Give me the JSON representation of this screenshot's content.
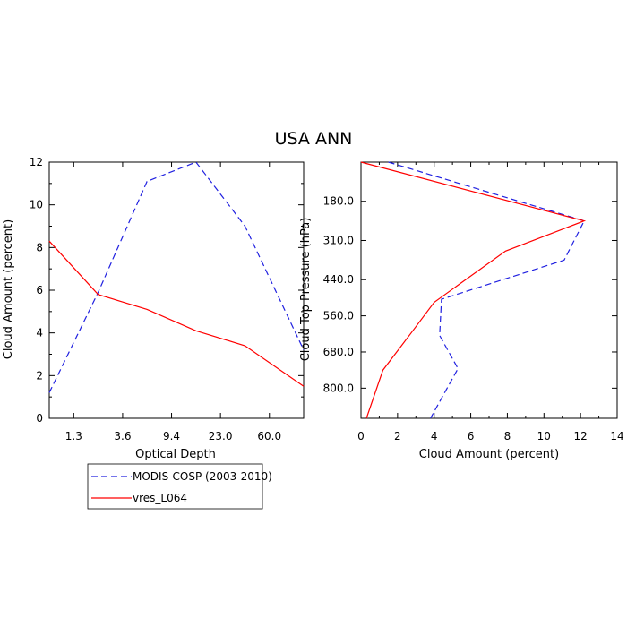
{
  "title": "USA ANN",
  "colors": {
    "modis": "#2020e0",
    "model": "#ff0000",
    "frame": "#000000"
  },
  "chart_data": [
    {
      "type": "line",
      "xlabel": "Optical Depth",
      "ylabel": "Cloud Amount (percent)",
      "x_tick_labels": [
        "1.3",
        "3.6",
        "9.4",
        "23.0",
        "60.0"
      ],
      "x_positions": [
        0.5,
        1.5,
        2.5,
        3.5,
        4.5
      ],
      "xlim": [
        0,
        5.2
      ],
      "ylim": [
        0,
        12
      ],
      "y_ticks": [
        0,
        2,
        4,
        6,
        8,
        10,
        12
      ],
      "series": [
        {
          "name": "MODIS-COSP (2003-2010)",
          "color_key": "modis",
          "style": "dashed",
          "x": [
            0,
            1,
            2,
            3,
            4,
            5.2
          ],
          "y": [
            1.2,
            5.9,
            11.1,
            12.0,
            9.0,
            3.2
          ]
        },
        {
          "name": "vres_L064",
          "color_key": "model",
          "style": "solid",
          "x": [
            0,
            1,
            2,
            3,
            4,
            5.2
          ],
          "y": [
            8.3,
            5.8,
            5.1,
            4.1,
            3.4,
            1.5
          ]
        }
      ]
    },
    {
      "type": "line",
      "xlabel": "Cloud Amount (percent)",
      "ylabel": "Cloud Top Pressure (hPa)",
      "xlim": [
        0,
        14
      ],
      "x_ticks": [
        0,
        2,
        4,
        6,
        8,
        10,
        12,
        14
      ],
      "x_tick_labels": [
        "0",
        "2",
        "4",
        "6",
        "8",
        "10",
        "12",
        "14"
      ],
      "ylim": [
        50,
        900
      ],
      "y_inverted": true,
      "y_ticks": [
        180,
        310,
        440,
        560,
        680,
        800
      ],
      "y_tick_labels": [
        "180.0",
        "310.0",
        "440.0",
        "560.0",
        "680.0",
        "800.0"
      ],
      "series": [
        {
          "name": "MODIS-COSP (2003-2010)",
          "color_key": "modis",
          "style": "dashed",
          "x": [
            1.5,
            12.2,
            11.1,
            4.4,
            4.3,
            5.3,
            3.8
          ],
          "y": [
            50,
            245,
            375,
            505,
            625,
            735,
            900
          ]
        },
        {
          "name": "vres_L064",
          "color_key": "model",
          "style": "solid",
          "x": [
            0.0,
            12.2,
            7.9,
            4.0,
            2.7,
            1.2,
            0.3
          ],
          "y": [
            50,
            245,
            345,
            515,
            620,
            740,
            900
          ]
        }
      ]
    }
  ],
  "legend": {
    "items": [
      {
        "label": "MODIS-COSP (2003-2010)",
        "color_key": "modis",
        "style": "dashed"
      },
      {
        "label": "vres_L064",
        "color_key": "model",
        "style": "solid"
      }
    ]
  }
}
